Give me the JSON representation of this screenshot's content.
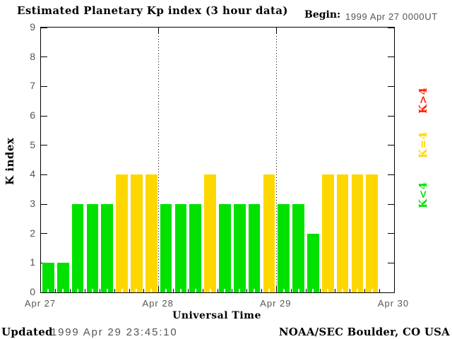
{
  "title": "Estimated Planetary Kp index (3 hour data)",
  "begin": {
    "label": "Begin:",
    "value": "1999 Apr 27 0000UT"
  },
  "axis": {
    "y_title": "K index",
    "x_title": "Universal Time"
  },
  "footer": {
    "updated_label": "Updated",
    "updated_value": "1999 Apr 29 23:45:10",
    "credit": "NOAA/SEC Boulder, CO USA"
  },
  "chart_data": {
    "type": "bar",
    "title": "Estimated Planetary Kp index (3 hour data)",
    "xlabel": "Universal Time",
    "ylabel": "K index",
    "ylim": [
      0,
      9
    ],
    "yticks": [
      0,
      1,
      2,
      3,
      4,
      5,
      6,
      7,
      8,
      9
    ],
    "xticklabels": [
      "Apr 27",
      "Apr 28",
      "Apr 29",
      "Apr 30"
    ],
    "hours_per_bar": 3,
    "slots_per_day": 8,
    "days": [
      {
        "date": "1999 Apr 27",
        "values": [
          1,
          1,
          3,
          3,
          3,
          4,
          4,
          4
        ]
      },
      {
        "date": "1999 Apr 28",
        "values": [
          3,
          3,
          3,
          4,
          3,
          3,
          3,
          4
        ]
      },
      {
        "date": "1999 Apr 29",
        "values": [
          3,
          3,
          2,
          4,
          4,
          4,
          4
        ]
      }
    ],
    "colors": {
      "below4": "#00e100",
      "equal4": "#ffd700",
      "above4": "#ff2200"
    },
    "legend": [
      {
        "label": "K>4",
        "color": "#ff2200"
      },
      {
        "label": "K=4",
        "color": "#ffd700"
      },
      {
        "label": "K<4",
        "color": "#00e100"
      }
    ],
    "grid": "dotted vertical lines at day boundaries",
    "legend_position": "right, rotated 90deg"
  }
}
